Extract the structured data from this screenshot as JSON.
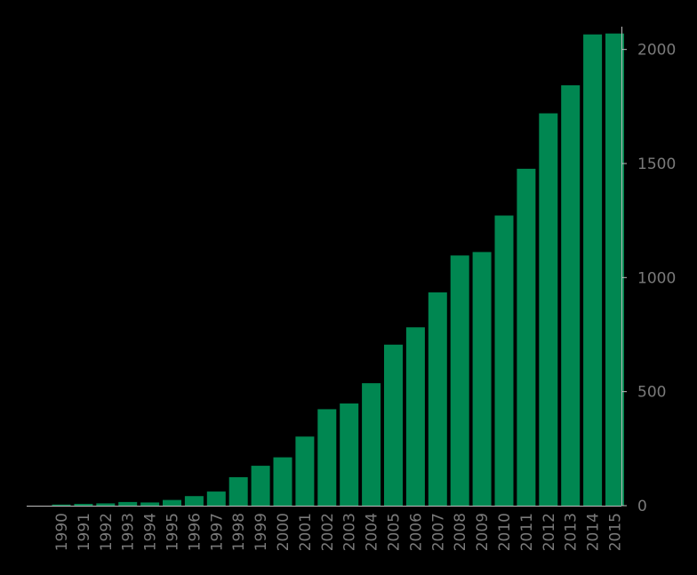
{
  "chart_data": {
    "type": "bar",
    "title": "",
    "xlabel": "",
    "ylabel": "",
    "categories": [
      "1990",
      "1991",
      "1992",
      "1993",
      "1994",
      "1995",
      "1996",
      "1997",
      "1998",
      "1999",
      "2000",
      "2001",
      "2002",
      "2003",
      "2004",
      "2005",
      "2006",
      "2007",
      "2008",
      "2009",
      "2010",
      "2011",
      "2012",
      "2013",
      "2014",
      "2015"
    ],
    "values": [
      5,
      8,
      10,
      16,
      14,
      25,
      42,
      62,
      125,
      175,
      212,
      303,
      423,
      448,
      537,
      706,
      782,
      935,
      1097,
      1112,
      1272,
      1477,
      1720,
      1843,
      2066,
      2070
    ],
    "ylim": [
      0,
      2100
    ],
    "yticks": [
      0,
      500,
      1000,
      1500,
      2000
    ],
    "y_axis_position": "right",
    "grid": false,
    "legend": "none",
    "bar_color": "#008751",
    "axis_color": "#bdbdbd",
    "label_color": "#7a7a7a",
    "background": "#000000"
  }
}
